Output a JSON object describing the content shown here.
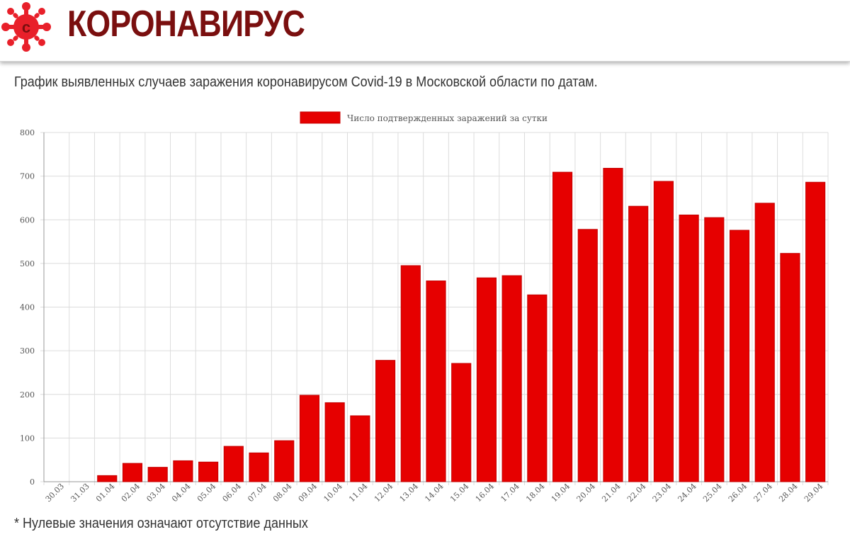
{
  "site": {
    "title": "КОРОНАВИРУС",
    "logo_icon": "virus-icon",
    "brand_color": "#7a0f0f"
  },
  "page": {
    "heading": "График выявленных случаев заражения коронавирусом Covid-19 в Московской области по датам.",
    "footnote": "* Нулевые значения означают отсутствие данных"
  },
  "chart_data": {
    "type": "bar",
    "legend_position": "top-center",
    "grid": true,
    "bar_color": "#e60000",
    "ylim": [
      0,
      800
    ],
    "y_ticks": [
      0,
      100,
      200,
      300,
      400,
      500,
      600,
      700,
      800
    ],
    "categories": [
      "30.03",
      "31.03",
      "01.04",
      "02.04",
      "03.04",
      "04.04",
      "05.04",
      "06.04",
      "07.04",
      "08.04",
      "09.04",
      "10.04",
      "11.04",
      "12.04",
      "13.04",
      "14.04",
      "15.04",
      "16.04",
      "17.04",
      "18.04",
      "19.04",
      "20.04",
      "21.04",
      "22.04",
      "23.04",
      "24.04",
      "25.04",
      "26.04",
      "27.04",
      "28.04",
      "29.04"
    ],
    "series": [
      {
        "name": "Число подтвержденных заражений за сутки",
        "values": [
          0,
          0,
          14,
          42,
          33,
          48,
          45,
          81,
          66,
          94,
          198,
          181,
          151,
          278,
          495,
          460,
          271,
          467,
          472,
          428,
          709,
          578,
          718,
          631,
          688,
          611,
          605,
          576,
          638,
          523,
          686
        ]
      }
    ]
  }
}
